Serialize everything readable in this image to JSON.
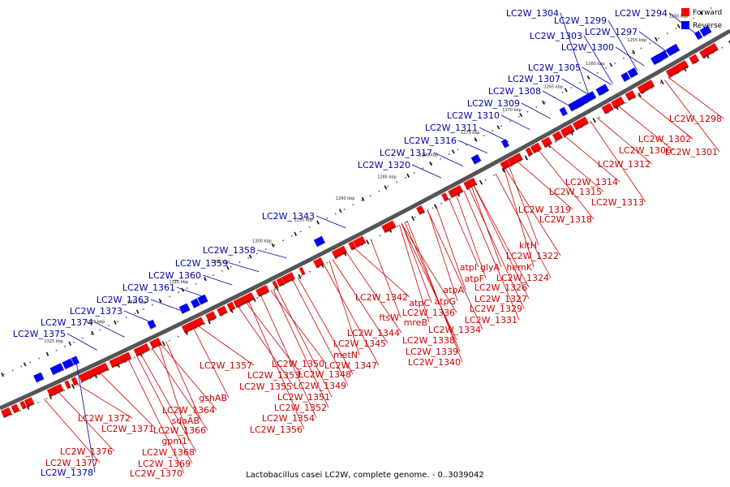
{
  "title": "Lactobacillus casei LC2W, complete genome. - 0..3039042",
  "colors": {
    "forward": "#ff0000",
    "reverse": "#0000ff",
    "forward_label": "#cc0000",
    "reverse_label": "#0000aa",
    "backbone": "#555555"
  },
  "legend": [
    {
      "label": "Forward",
      "color": "#ff0000"
    },
    {
      "label": "Reverse",
      "color": "#0000ff"
    }
  ],
  "ticks": [
    "1250 kbp",
    "1255 kbp",
    "1260 kbp",
    "1265 kbp",
    "1270 kbp",
    "1275 kbp",
    "1280 kbp",
    "1285 kbp",
    "1290 kbp",
    "1295 kbp",
    "1300 kbp",
    "1305 kbp",
    "1310 kbp",
    "1315 kbp",
    "1320 kbp",
    "1325 kbp"
  ],
  "reverse_genes": [
    "LC2W_1294",
    "LC2W_1297",
    "LC2W_1299",
    "LC2W_1300",
    "LC2W_1303",
    "LC2W_1304",
    "LC2W_1305",
    "LC2W_1307",
    "LC2W_1308",
    "LC2W_1309",
    "LC2W_1310",
    "LC2W_1311",
    "LC2W_1316",
    "LC2W_1317",
    "LC2W_1320",
    "LC2W_1343",
    "LC2W_1358",
    "LC2W_1359",
    "LC2W_1360",
    "LC2W_1361",
    "LC2W_1363",
    "LC2W_1373",
    "LC2W_1374",
    "LC2W_1375",
    "LC2W_1378"
  ],
  "forward_genes": [
    "LC2W_1298",
    "LC2W_1302",
    "LC2W_1301",
    "LC2W_1306",
    "LC2W_1312",
    "LC2W_1314",
    "LC2W_1315",
    "LC2W_1313",
    "LC2W_1319",
    "LC2W_1318",
    "kitH",
    "LC2W_1322",
    "hemK",
    "glyA",
    "atpI",
    "LC2W_1324",
    "atpF",
    "LC2W_1326",
    "LC2W_1327",
    "atpA",
    "atpG",
    "LC2W_1329",
    "LC2W_1331",
    "LC2W_1342",
    "atpC",
    "LC2W_1336",
    "ftsW",
    "mreB",
    "LC2W_1334",
    "LC2W_1338",
    "LC2W_1339",
    "LC2W_1340",
    "LC2W_1344",
    "LC2W_1345",
    "metN",
    "LC2W_1347",
    "LC2W_1348",
    "LC2W_1349",
    "LC2W_1350",
    "LC2W_1357",
    "LC2W_1353",
    "LC2W_1355",
    "LC2W_1351",
    "LC2W_1352",
    "LC2W_1354",
    "LC2W_1356",
    "gshAB",
    "LC2W_1364",
    "sdaAB",
    "LC2W_1366",
    "LC2W_1372",
    "LC2W_1371",
    "gpm1",
    "LC2W_1368",
    "LC2W_1369",
    "LC2W_1370",
    "LC2W_1376",
    "LC2W_1377"
  ]
}
